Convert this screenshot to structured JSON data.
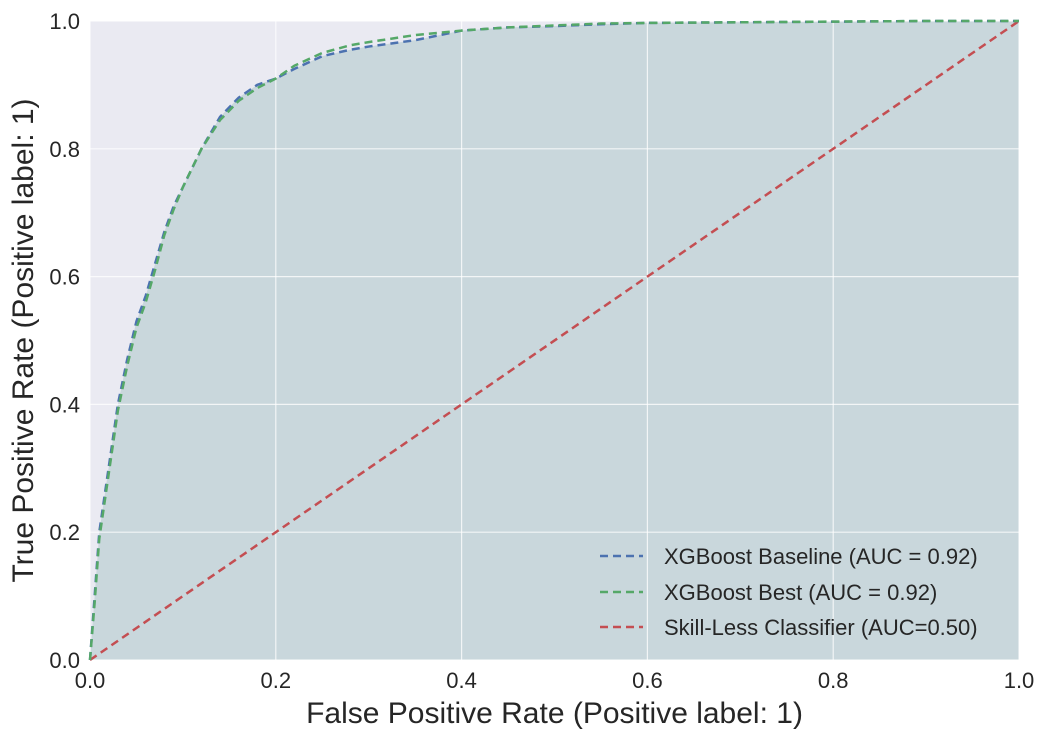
{
  "chart_data": {
    "type": "line",
    "title": "",
    "xlabel": "False Positive Rate (Positive label: 1)",
    "ylabel": "True Positive Rate (Positive label: 1)",
    "xlim": [
      0.0,
      1.0
    ],
    "ylim": [
      0.0,
      1.0
    ],
    "x_ticks": [
      "0.0",
      "0.2",
      "0.4",
      "0.6",
      "0.8",
      "1.0"
    ],
    "y_ticks": [
      "0.0",
      "0.2",
      "0.4",
      "0.6",
      "0.8",
      "1.0"
    ],
    "grid": true,
    "legend_position": "bottom-right",
    "fill_under": "XGBoost Baseline (AUC = 0.92)",
    "fill_color": "#c9d7dc",
    "series": [
      {
        "name": "XGBoost Baseline (AUC = 0.92)",
        "color": "#4c72b0",
        "style": "dashed",
        "x": [
          0.0,
          0.005,
          0.01,
          0.02,
          0.03,
          0.04,
          0.05,
          0.06,
          0.07,
          0.08,
          0.09,
          0.1,
          0.12,
          0.14,
          0.16,
          0.18,
          0.2,
          0.22,
          0.25,
          0.28,
          0.3,
          0.35,
          0.4,
          0.45,
          0.5,
          0.55,
          0.6,
          0.7,
          0.8,
          0.9,
          1.0
        ],
        "y": [
          0.0,
          0.1,
          0.2,
          0.3,
          0.4,
          0.47,
          0.53,
          0.57,
          0.62,
          0.67,
          0.71,
          0.74,
          0.8,
          0.85,
          0.88,
          0.9,
          0.91,
          0.925,
          0.945,
          0.955,
          0.96,
          0.97,
          0.985,
          0.99,
          0.992,
          0.995,
          0.997,
          0.998,
          0.999,
          1.0,
          1.0
        ]
      },
      {
        "name": "XGBoost Best (AUC = 0.92)",
        "color": "#55a868",
        "style": "dashed",
        "x": [
          0.0,
          0.005,
          0.01,
          0.02,
          0.03,
          0.04,
          0.05,
          0.06,
          0.07,
          0.08,
          0.09,
          0.1,
          0.12,
          0.14,
          0.16,
          0.18,
          0.2,
          0.22,
          0.25,
          0.28,
          0.3,
          0.35,
          0.4,
          0.45,
          0.5,
          0.55,
          0.6,
          0.7,
          0.8,
          0.9,
          1.0
        ],
        "y": [
          0.0,
          0.09,
          0.19,
          0.29,
          0.39,
          0.46,
          0.52,
          0.56,
          0.61,
          0.665,
          0.705,
          0.74,
          0.8,
          0.845,
          0.875,
          0.895,
          0.91,
          0.93,
          0.95,
          0.962,
          0.967,
          0.978,
          0.985,
          0.99,
          0.993,
          0.996,
          0.997,
          0.998,
          0.999,
          1.0,
          1.0
        ]
      },
      {
        "name": "Skill-Less Classifier (AUC=0.50)",
        "color": "#c44e52",
        "style": "dashed",
        "x": [
          0.0,
          1.0
        ],
        "y": [
          0.0,
          1.0
        ]
      }
    ]
  }
}
